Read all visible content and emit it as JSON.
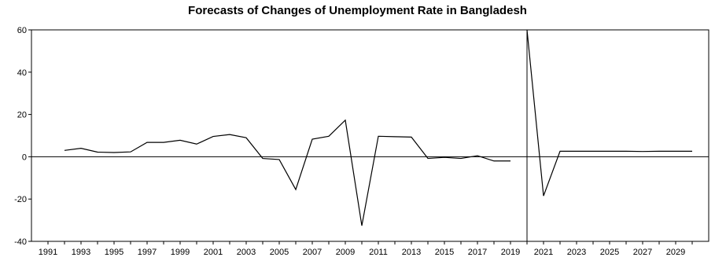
{
  "chart_data": {
    "type": "line",
    "title": "Forecasts of Changes of Unemployment Rate in Bangladesh",
    "xlabel": "",
    "ylabel": "",
    "xlim": [
      1990,
      2031
    ],
    "ylim": [
      -40,
      60
    ],
    "yticks": [
      -40,
      -20,
      0,
      20,
      40,
      60
    ],
    "xticks": [
      1991,
      1993,
      1995,
      1997,
      1999,
      2001,
      2003,
      2005,
      2007,
      2009,
      2011,
      2013,
      2015,
      2017,
      2019,
      2021,
      2023,
      2025,
      2027,
      2029
    ],
    "zero_line": true,
    "forecast_divider_x": 2020,
    "grid": false,
    "series": [
      {
        "x": [
          1992,
          1993,
          1994,
          1995,
          1996,
          1997,
          1998,
          1999,
          2000,
          2001,
          2002,
          2003,
          2004,
          2005,
          2006,
          2007,
          2008,
          2009,
          2010,
          2011,
          2012,
          2013,
          2014,
          2015,
          2016,
          2017,
          2018,
          2019
        ],
        "values": [
          3,
          4,
          2.2,
          2,
          2.3,
          6.8,
          6.8,
          7.8,
          6,
          9.6,
          10.5,
          9,
          -0.8,
          -1.3,
          -15.5,
          8.3,
          9.7,
          17.3,
          -32.6,
          9.7,
          9.5,
          9.3,
          -0.8,
          -0.3,
          -0.8,
          0.5,
          -2,
          -2
        ]
      },
      {
        "x": [
          2020,
          2021,
          2022,
          2023,
          2024,
          2025,
          2026,
          2027,
          2028,
          2029,
          2030
        ],
        "values": [
          60,
          -18.5,
          2.6,
          2.6,
          2.6,
          2.6,
          2.6,
          2.5,
          2.6,
          2.6,
          2.6
        ]
      }
    ],
    "color": "#000000"
  }
}
